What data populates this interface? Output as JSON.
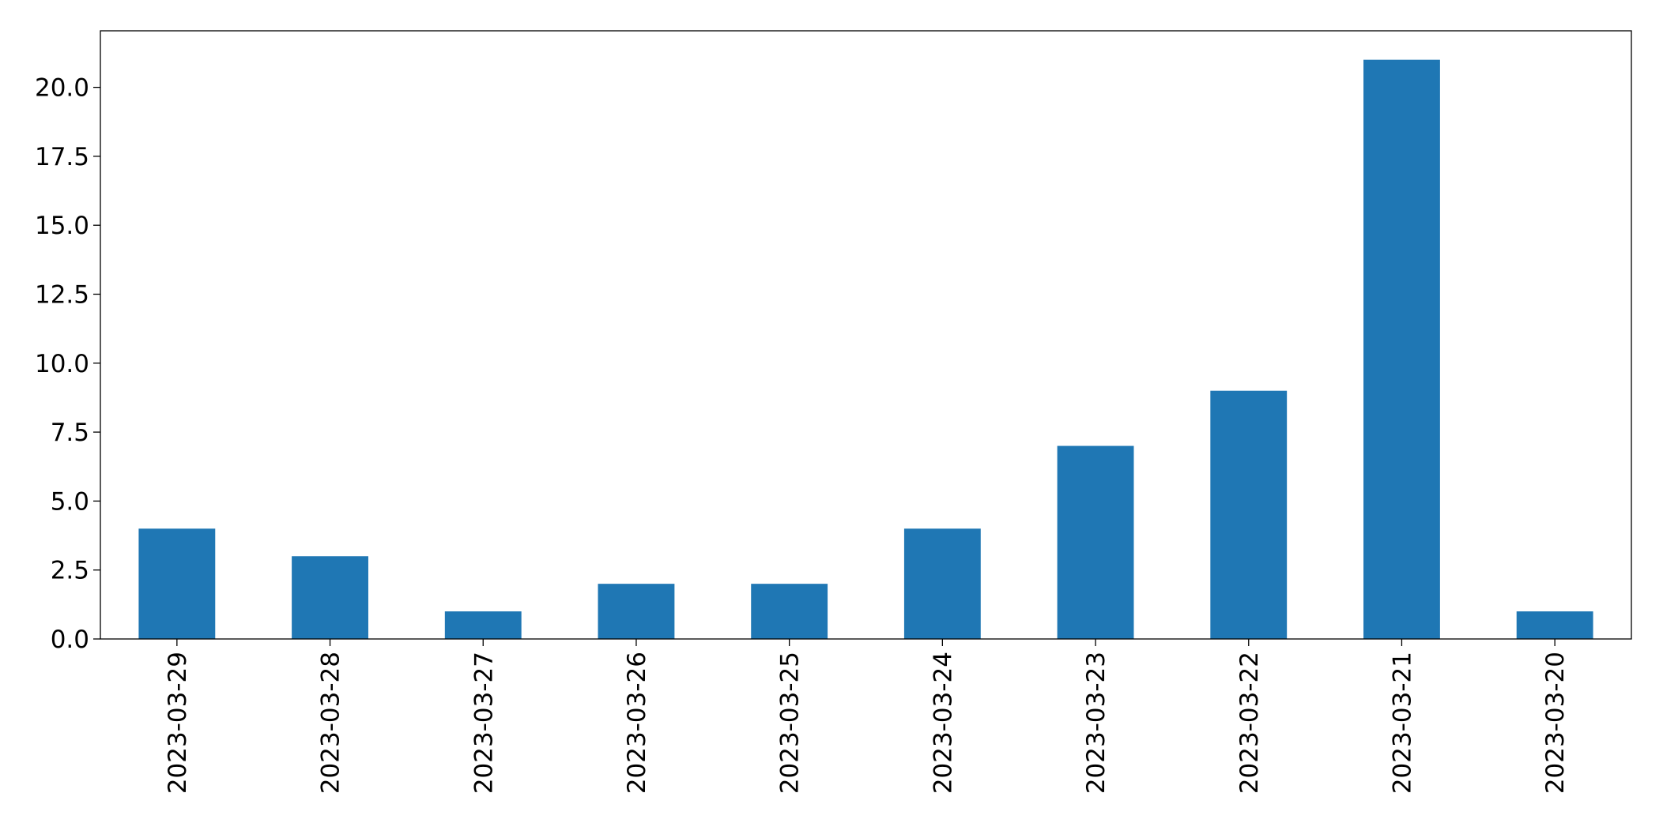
{
  "chart_data": {
    "type": "bar",
    "categories": [
      "2023-03-29",
      "2023-03-28",
      "2023-03-27",
      "2023-03-26",
      "2023-03-25",
      "2023-03-24",
      "2023-03-23",
      "2023-03-22",
      "2023-03-21",
      "2023-03-20"
    ],
    "values": [
      4,
      3,
      1,
      2,
      2,
      4,
      7,
      9,
      21,
      1
    ],
    "color": "#1f77b4",
    "ylim": [
      0,
      22.05
    ],
    "yticks": [
      {
        "value": 0,
        "label": "0.0"
      },
      2.5,
      {
        "value": 5,
        "label": "5.0"
      },
      7.5,
      {
        "value": 10,
        "label": "10.0"
      },
      12.5,
      {
        "value": 15,
        "label": "15.0"
      },
      17.5,
      {
        "value": 20,
        "label": "20.0"
      }
    ],
    "grid": false
  }
}
